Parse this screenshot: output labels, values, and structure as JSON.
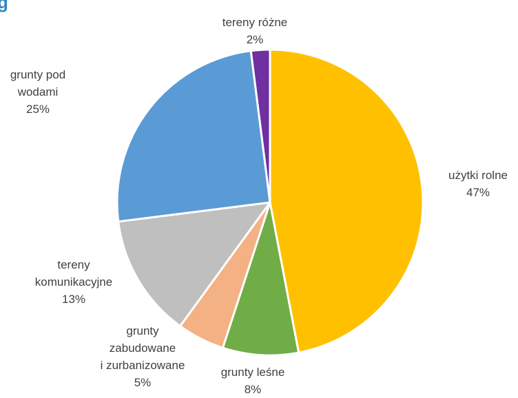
{
  "title_fragment": "g",
  "chart_data": {
    "type": "pie",
    "title": "",
    "slices": [
      {
        "label": "użytki rolne",
        "value": 47,
        "pct_label": "47%",
        "color": "#FFC000"
      },
      {
        "label": "grunty leśne",
        "value": 8,
        "pct_label": "8%",
        "color": "#70AD47"
      },
      {
        "label": "grunty zabudowane i zurbanizowane",
        "value": 5,
        "pct_label": "5%",
        "color": "#F4B183"
      },
      {
        "label": "tereny komunikacyjne",
        "value": 13,
        "pct_label": "13%",
        "color": "#BFBFBF"
      },
      {
        "label": "grunty pod wodami",
        "value": 25,
        "pct_label": "25%",
        "color": "#5B9BD5"
      },
      {
        "label": "tereny różne",
        "value": 2,
        "pct_label": "2%",
        "color": "#7030A0"
      }
    ],
    "labels": {
      "rolne": [
        "użytki rolne",
        "47%"
      ],
      "lesne": [
        "grunty leśne",
        "8%"
      ],
      "zabudowane": [
        "grunty",
        "zabudowane",
        "i zurbanizowane",
        "5%"
      ],
      "komunikacyjne": [
        "tereny",
        "komunikacyjne",
        "13%"
      ],
      "wody": [
        "grunty pod",
        "wodami",
        "25%"
      ],
      "rozne": [
        "tereny różne",
        "2%"
      ]
    }
  }
}
